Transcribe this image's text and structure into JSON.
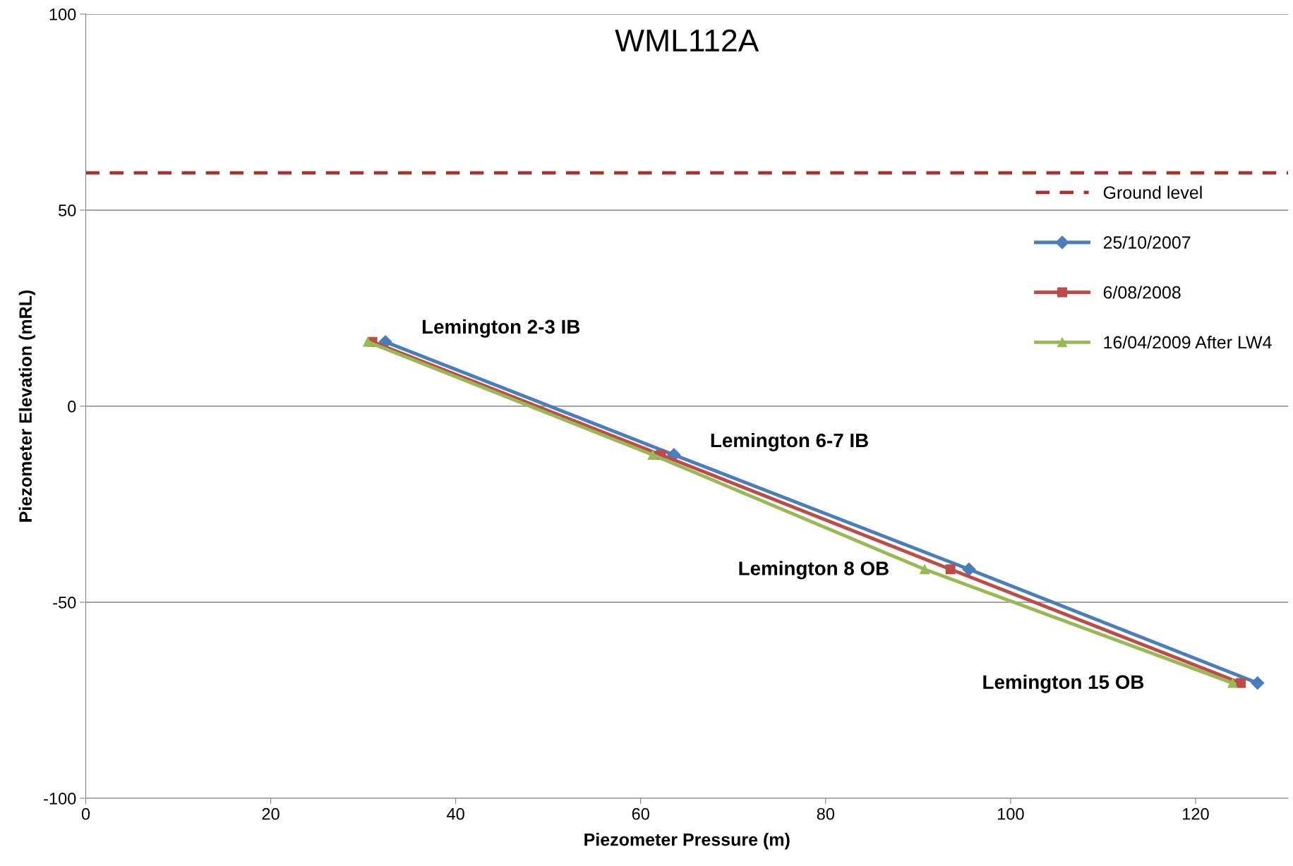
{
  "chart_data": {
    "type": "line",
    "title": "WML112A",
    "xlabel": "Piezometer Pressure (m)",
    "ylabel": "Piezometer Elevation (mRL)",
    "xlim": [
      0,
      130
    ],
    "xticks": [
      0,
      20,
      40,
      60,
      80,
      100,
      120
    ],
    "ylim": [
      -100,
      100
    ],
    "yticks": [
      -100,
      -50,
      0,
      50,
      100
    ],
    "grid": "y",
    "legend": "right",
    "line_style": "solid",
    "ref_lines": [
      {
        "axis": "y",
        "value": 59.5,
        "label": "Ground level",
        "color": "#a5322e",
        "line_style": "dashed"
      }
    ],
    "series": [
      {
        "name": "25/10/2007",
        "color": "#4a7ebb",
        "marker": "diamond",
        "x": [
          32.4,
          63.6,
          95.5,
          126.7
        ],
        "values": [
          16.4,
          -12.4,
          -41.6,
          -70.6
        ]
      },
      {
        "name": "6/08/2008",
        "color": "#be4b48",
        "marker": "square",
        "x": [
          31.0,
          62.2,
          93.5,
          124.9
        ],
        "values": [
          16.4,
          -12.4,
          -41.6,
          -70.6
        ]
      },
      {
        "name": "16/04/2009 After LW4",
        "color": "#98b954",
        "marker": "triangle",
        "x": [
          30.5,
          61.3,
          90.7,
          124.0
        ],
        "values": [
          16.4,
          -12.4,
          -41.6,
          -70.6
        ]
      }
    ],
    "annotations": [
      {
        "text": "Lemington 2-3 IB",
        "x": 32.4,
        "y": 16.4
      },
      {
        "text": "Lemington 6-7 IB",
        "x": 63.6,
        "y": -12.4
      },
      "Lemington 8 OB",
      "Lemington 15 OB"
    ]
  }
}
